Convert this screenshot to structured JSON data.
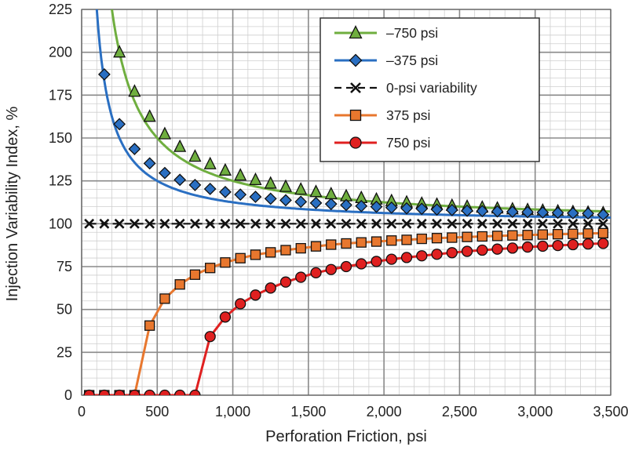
{
  "chart_data": {
    "type": "line",
    "title": "",
    "xlabel": "Perforation Friction, psi",
    "ylabel": "Injection Variability Index, %",
    "xlim": [
      0,
      3500
    ],
    "ylim": [
      0,
      225
    ],
    "x_ticks": [
      0,
      500,
      1000,
      1500,
      2000,
      2500,
      3000,
      3500
    ],
    "x_tick_labels": [
      "0",
      "500",
      "1,000",
      "1,500",
      "2,000",
      "2,500",
      "3,000",
      "3,500"
    ],
    "y_ticks": [
      0,
      25,
      50,
      75,
      100,
      125,
      150,
      175,
      200,
      225
    ],
    "y_tick_labels": [
      "0",
      "25",
      "50",
      "75",
      "100",
      "125",
      "150",
      "175",
      "200",
      "225"
    ],
    "grid": true,
    "legend_position": "top-right",
    "series": [
      {
        "name": "–750 psi",
        "color": "#6fae3f",
        "marker": "triangle",
        "x": [
          250,
          350,
          450,
          550,
          650,
          750,
          850,
          950,
          1050,
          1150,
          1250,
          1350,
          1450,
          1550,
          1650,
          1750,
          1850,
          1950,
          2050,
          2150,
          2250,
          2350,
          2450,
          2550,
          2650,
          2750,
          2850,
          2950,
          3050,
          3150,
          3250,
          3350,
          3450
        ],
        "y": [
          200,
          177.1,
          162.5,
          152.3,
          144.9,
          139.2,
          134.8,
          131.1,
          128.2,
          125.6,
          123.5,
          121.6,
          120,
          118.6,
          117.3,
          116.1,
          115.1,
          114.2,
          113.3,
          112.5,
          111.8,
          111.2,
          110.6,
          110,
          109.5,
          109,
          108.5,
          108.1,
          107.7,
          107.3,
          106.9,
          106.6,
          106.3
        ]
      },
      {
        "name": "–375 psi",
        "color": "#2a6fc2",
        "marker": "diamond",
        "x": [
          150,
          250,
          350,
          450,
          550,
          650,
          750,
          850,
          950,
          1050,
          1150,
          1250,
          1350,
          1450,
          1550,
          1650,
          1750,
          1850,
          1950,
          2050,
          2150,
          2250,
          2350,
          2450,
          2550,
          2650,
          2750,
          2850,
          2950,
          3050,
          3150,
          3250,
          3350,
          3450
        ],
        "y": [
          187.1,
          158.1,
          143.6,
          135.2,
          129.6,
          125.6,
          122.6,
          120.3,
          118.5,
          117,
          115.7,
          114.6,
          113.7,
          112.8,
          112.1,
          111.5,
          110.9,
          110.3,
          109.9,
          109.4,
          109,
          108.7,
          108.3,
          108,
          107.6,
          107.4,
          107.2,
          107,
          106.8,
          106.6,
          106.4,
          106.2,
          106,
          105.3
        ]
      },
      {
        "name": "0-psi variability",
        "color": "#111111",
        "marker": "x",
        "x": [
          50,
          150,
          250,
          350,
          450,
          550,
          650,
          750,
          850,
          950,
          1050,
          1150,
          1250,
          1350,
          1450,
          1550,
          1650,
          1750,
          1850,
          1950,
          2050,
          2150,
          2250,
          2350,
          2450,
          2550,
          2650,
          2750,
          2850,
          2950,
          3050,
          3150,
          3250,
          3350,
          3450
        ],
        "y": [
          100,
          100,
          100,
          100,
          100,
          100,
          100,
          100,
          100,
          100,
          100,
          100,
          100,
          100,
          100,
          100,
          100,
          100,
          100,
          100,
          100,
          100,
          100,
          100,
          100,
          100,
          100,
          100,
          100,
          100,
          100,
          100,
          100,
          100,
          100
        ]
      },
      {
        "name": "375 psi",
        "color": "#e8772e",
        "marker": "square",
        "x": [
          50,
          150,
          250,
          350,
          450,
          550,
          650,
          750,
          850,
          950,
          1050,
          1150,
          1250,
          1350,
          1450,
          1550,
          1650,
          1750,
          1850,
          1950,
          2050,
          2150,
          2250,
          2350,
          2450,
          2550,
          2650,
          2750,
          2850,
          2950,
          3050,
          3150,
          3250,
          3350,
          3450
        ],
        "y": [
          0,
          0,
          0,
          0,
          40.6,
          56.3,
          64.6,
          70.3,
          74.2,
          77.4,
          79.9,
          81.9,
          83.3,
          84.6,
          85.7,
          86.8,
          87.8,
          88.5,
          89.1,
          89.6,
          90.2,
          90.6,
          91.2,
          91.6,
          91.9,
          92.3,
          92.6,
          92.9,
          93.2,
          93.4,
          93.7,
          93.9,
          94.1,
          94.3,
          94.5
        ]
      },
      {
        "name": "750 psi",
        "color": "#e02020",
        "marker": "circle",
        "x": [
          50,
          150,
          250,
          350,
          450,
          550,
          650,
          750,
          850,
          950,
          1050,
          1150,
          1250,
          1350,
          1450,
          1550,
          1650,
          1750,
          1850,
          1950,
          2050,
          2150,
          2250,
          2350,
          2450,
          2550,
          2650,
          2750,
          2850,
          2950,
          3050,
          3150,
          3250,
          3350,
          3450
        ],
        "y": [
          0,
          0,
          0,
          0,
          0,
          0,
          0,
          0,
          34.2,
          45.6,
          53.3,
          58.4,
          62.5,
          66,
          68.8,
          71.4,
          73.3,
          75,
          76.6,
          78,
          79.3,
          80.3,
          81.3,
          82.2,
          83.1,
          83.9,
          84.6,
          85.2,
          85.8,
          86.4,
          86.9,
          87.3,
          87.8,
          88.2,
          88.5
        ]
      }
    ]
  }
}
